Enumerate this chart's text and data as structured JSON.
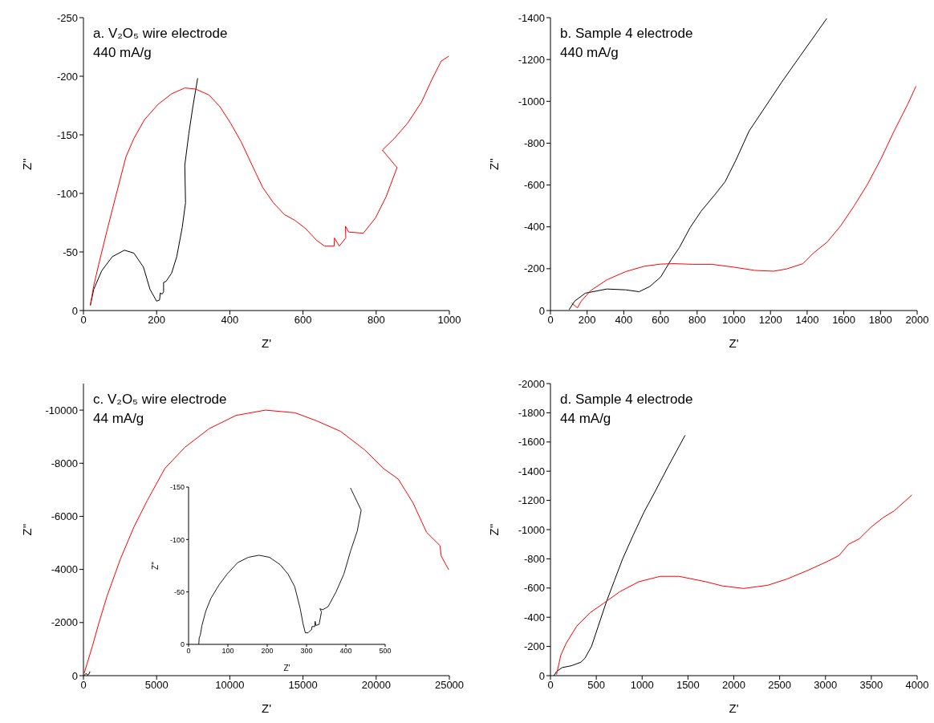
{
  "chart_data": [
    {
      "type": "line",
      "title": "a. V₂O₅ wire electrode",
      "subtitle": "440 mA/g",
      "xlabel": "Z'",
      "ylabel": "Z''",
      "xlim": [
        0,
        1000
      ],
      "xticks": [
        0,
        200,
        400,
        600,
        800,
        1000
      ],
      "ylim": [
        0,
        -250
      ],
      "yticks": [
        0,
        -50,
        -100,
        -150,
        -200,
        -250
      ],
      "legend": false,
      "grid": false,
      "marker": "none",
      "line_style": "solid",
      "series": [
        {
          "color": "#000000",
          "x": [
            19,
            28,
            50,
            79,
            112,
            138,
            164,
            182,
            200,
            208,
            210,
            215,
            219,
            219,
            226,
            241,
            255,
            270,
            279,
            277,
            288,
            299,
            312
          ],
          "values": [
            -4.6,
            -18,
            -34,
            -46,
            -51.5,
            -49,
            -37,
            -18,
            -8,
            -9,
            -15,
            -14,
            -16,
            -24,
            -25,
            -32,
            -46,
            -71,
            -92,
            -124,
            -151,
            -174,
            -198
          ]
        },
        {
          "color": "#ff0000",
          "x": [
            19,
            28,
            43,
            65,
            87,
            116,
            138,
            167,
            204,
            241,
            277,
            307,
            343,
            373,
            402,
            431,
            461,
            490,
            519,
            549,
            578,
            607,
            637,
            659,
            685,
            686,
            699,
            717,
            716,
            725,
            765,
            798,
            827,
            857,
            817,
            850,
            886,
            924,
            952,
            978,
            998
          ],
          "values": [
            -5,
            -21,
            -41,
            -69,
            -96,
            -131,
            -147,
            -163,
            -176,
            -185,
            -190,
            -189,
            -184,
            -174,
            -160,
            -144,
            -124,
            -105,
            -92,
            -82,
            -77,
            -70,
            -60,
            -55,
            -55,
            -62,
            -55,
            -62,
            -72,
            -67,
            -66,
            -79,
            -97,
            -122,
            -137,
            -147,
            -160,
            -178,
            -197,
            -213,
            -217
          ]
        }
      ]
    },
    {
      "type": "line",
      "title": "b. Sample 4 electrode",
      "subtitle": "440 mA/g",
      "xlabel": "Z'",
      "ylabel": "Z''",
      "xlim": [
        0,
        2000
      ],
      "xticks": [
        0,
        200,
        400,
        600,
        800,
        1000,
        1200,
        1400,
        1600,
        1800,
        2000
      ],
      "ylim": [
        0,
        -1400
      ],
      "yticks": [
        0,
        -200,
        -400,
        -600,
        -800,
        -1000,
        -1200,
        -1400
      ],
      "legend": false,
      "grid": false,
      "marker": "none",
      "line_style": "solid",
      "series": [
        {
          "color": "#000000",
          "x": [
            103,
            132,
            190,
            308,
            410,
            484,
            542,
            601,
            659,
            703,
            762,
            821,
            894,
            952,
            1011,
            1084,
            1172,
            1260,
            1363,
            1436,
            1506
          ],
          "values": [
            -6,
            -45,
            -83,
            -103,
            -99,
            -90,
            -115,
            -160,
            -244,
            -301,
            -397,
            -474,
            -551,
            -615,
            -718,
            -859,
            -974,
            -1090,
            -1218,
            -1308,
            -1395
          ]
        },
        {
          "color": "#ff0000",
          "x": [
            117,
            147,
            168,
            220,
            308,
            410,
            513,
            601,
            674,
            777,
            879,
            996,
            1114,
            1216,
            1289,
            1377,
            1436,
            1509,
            1582,
            1656,
            1729,
            1802,
            1875,
            1949,
            1993
          ],
          "values": [
            -35,
            -13,
            -45,
            -96,
            -147,
            -186,
            -212,
            -222,
            -224,
            -221,
            -221,
            -208,
            -192,
            -188,
            -199,
            -224,
            -276,
            -327,
            -404,
            -500,
            -603,
            -724,
            -859,
            -987,
            -1071
          ]
        }
      ]
    },
    {
      "type": "line",
      "title": "c. V₂O₅ wire electrode",
      "subtitle": "44 mA/g",
      "xlabel": "Z'",
      "ylabel": "Z''",
      "xlim": [
        0,
        25000
      ],
      "xticks": [
        0,
        5000,
        10000,
        15000,
        20000,
        25000
      ],
      "ylim": [
        0,
        -11000
      ],
      "yticks": [
        0,
        -2000,
        -4000,
        -6000,
        -8000,
        -10000
      ],
      "legend": false,
      "grid": false,
      "marker": "none",
      "line_style": "solid",
      "series": [
        {
          "color": "#000000",
          "x": [
            30,
            180,
            300,
            440,
            410
          ],
          "values": [
            0,
            -85,
            -10,
            -130,
            -150
          ]
        },
        {
          "color": "#ff0000",
          "x": [
            55,
            605,
            1064,
            1614,
            2531,
            3448,
            4365,
            5558,
            6933,
            8584,
            10418,
            12436,
            14453,
            15920,
            17571,
            19222,
            20506,
            21515,
            22524,
            23441,
            24358,
            24450,
            24945
          ],
          "values": [
            -100,
            -1100,
            -2000,
            -3000,
            -4400,
            -5600,
            -6600,
            -7800,
            -8600,
            -9300,
            -9800,
            -10000,
            -9900,
            -9600,
            -9200,
            -8500,
            -7800,
            -7400,
            -6500,
            -5400,
            -4900,
            -4500,
            -4000
          ]
        }
      ]
    },
    {
      "type": "line",
      "title": "d. Sample 4 electrode",
      "subtitle": "44 mA/g",
      "xlabel": "Z'",
      "ylabel": "Z''",
      "xlim": [
        0,
        4000
      ],
      "xticks": [
        0,
        500,
        1000,
        1500,
        2000,
        2500,
        3000,
        3500,
        4000
      ],
      "ylim": [
        0,
        -2000
      ],
      "yticks": [
        0,
        -200,
        -400,
        -600,
        -800,
        -1000,
        -1200,
        -1400,
        -1600,
        -1800,
        -2000
      ],
      "legend": false,
      "grid": false,
      "marker": "none",
      "line_style": "solid",
      "series": [
        {
          "color": "#000000",
          "x": [
            38,
            67,
            126,
            229,
            332,
            376,
            449,
            522,
            610,
            698,
            787,
            904,
            1021,
            1139,
            1285,
            1467
          ],
          "values": [
            0,
            -28,
            -55,
            -68,
            -92,
            -119,
            -202,
            -340,
            -505,
            -652,
            -799,
            -964,
            -1120,
            -1258,
            -1433,
            -1644
          ]
        },
        {
          "color": "#ff0000",
          "x": [
            67,
            112,
            170,
            288,
            434,
            581,
            757,
            963,
            1197,
            1403,
            1696,
            1872,
            2107,
            2371,
            2577,
            2811,
            3017,
            3149,
            3252,
            3369,
            3501,
            3633,
            3751,
            3941
          ],
          "values": [
            -9,
            -138,
            -220,
            -340,
            -432,
            -496,
            -575,
            -643,
            -680,
            -680,
            -643,
            -615,
            -597,
            -619,
            -661,
            -722,
            -781,
            -823,
            -900,
            -937,
            -1019,
            -1084,
            -1129,
            -1236
          ]
        }
      ]
    },
    {
      "type": "line",
      "xlabel": "Z'",
      "ylabel": "Z''",
      "xlim": [
        0,
        500
      ],
      "xticks": [
        0,
        100,
        200,
        300,
        400,
        500
      ],
      "ylim": [
        0,
        -150
      ],
      "yticks": [
        0,
        -50,
        -100,
        -150
      ],
      "legend": false,
      "grid": false,
      "marker": "none",
      "line_style": "solid",
      "series": [
        {
          "color": "#000000",
          "x": [
            26,
            27,
            30,
            34,
            44,
            57,
            78,
            98,
            125,
            152,
            179,
            206,
            233,
            253,
            270,
            284,
            291,
            297,
            304,
            309,
            313,
            314,
            321,
            322,
            324,
            332,
            338,
            334,
            341,
            355,
            375,
            395,
            412,
            429,
            439,
            412
          ],
          "values": [
            0,
            -6,
            -9,
            -18,
            -32,
            -44,
            -57,
            -67,
            -78,
            -83,
            -85,
            -83,
            -76,
            -67,
            -55,
            -34,
            -20,
            -11,
            -11,
            -13,
            -14,
            -17,
            -17,
            -22,
            -18,
            -19,
            -31,
            -34,
            -33,
            -36,
            -50,
            -67,
            -89,
            -108,
            -128,
            -149
          ]
        }
      ]
    }
  ]
}
